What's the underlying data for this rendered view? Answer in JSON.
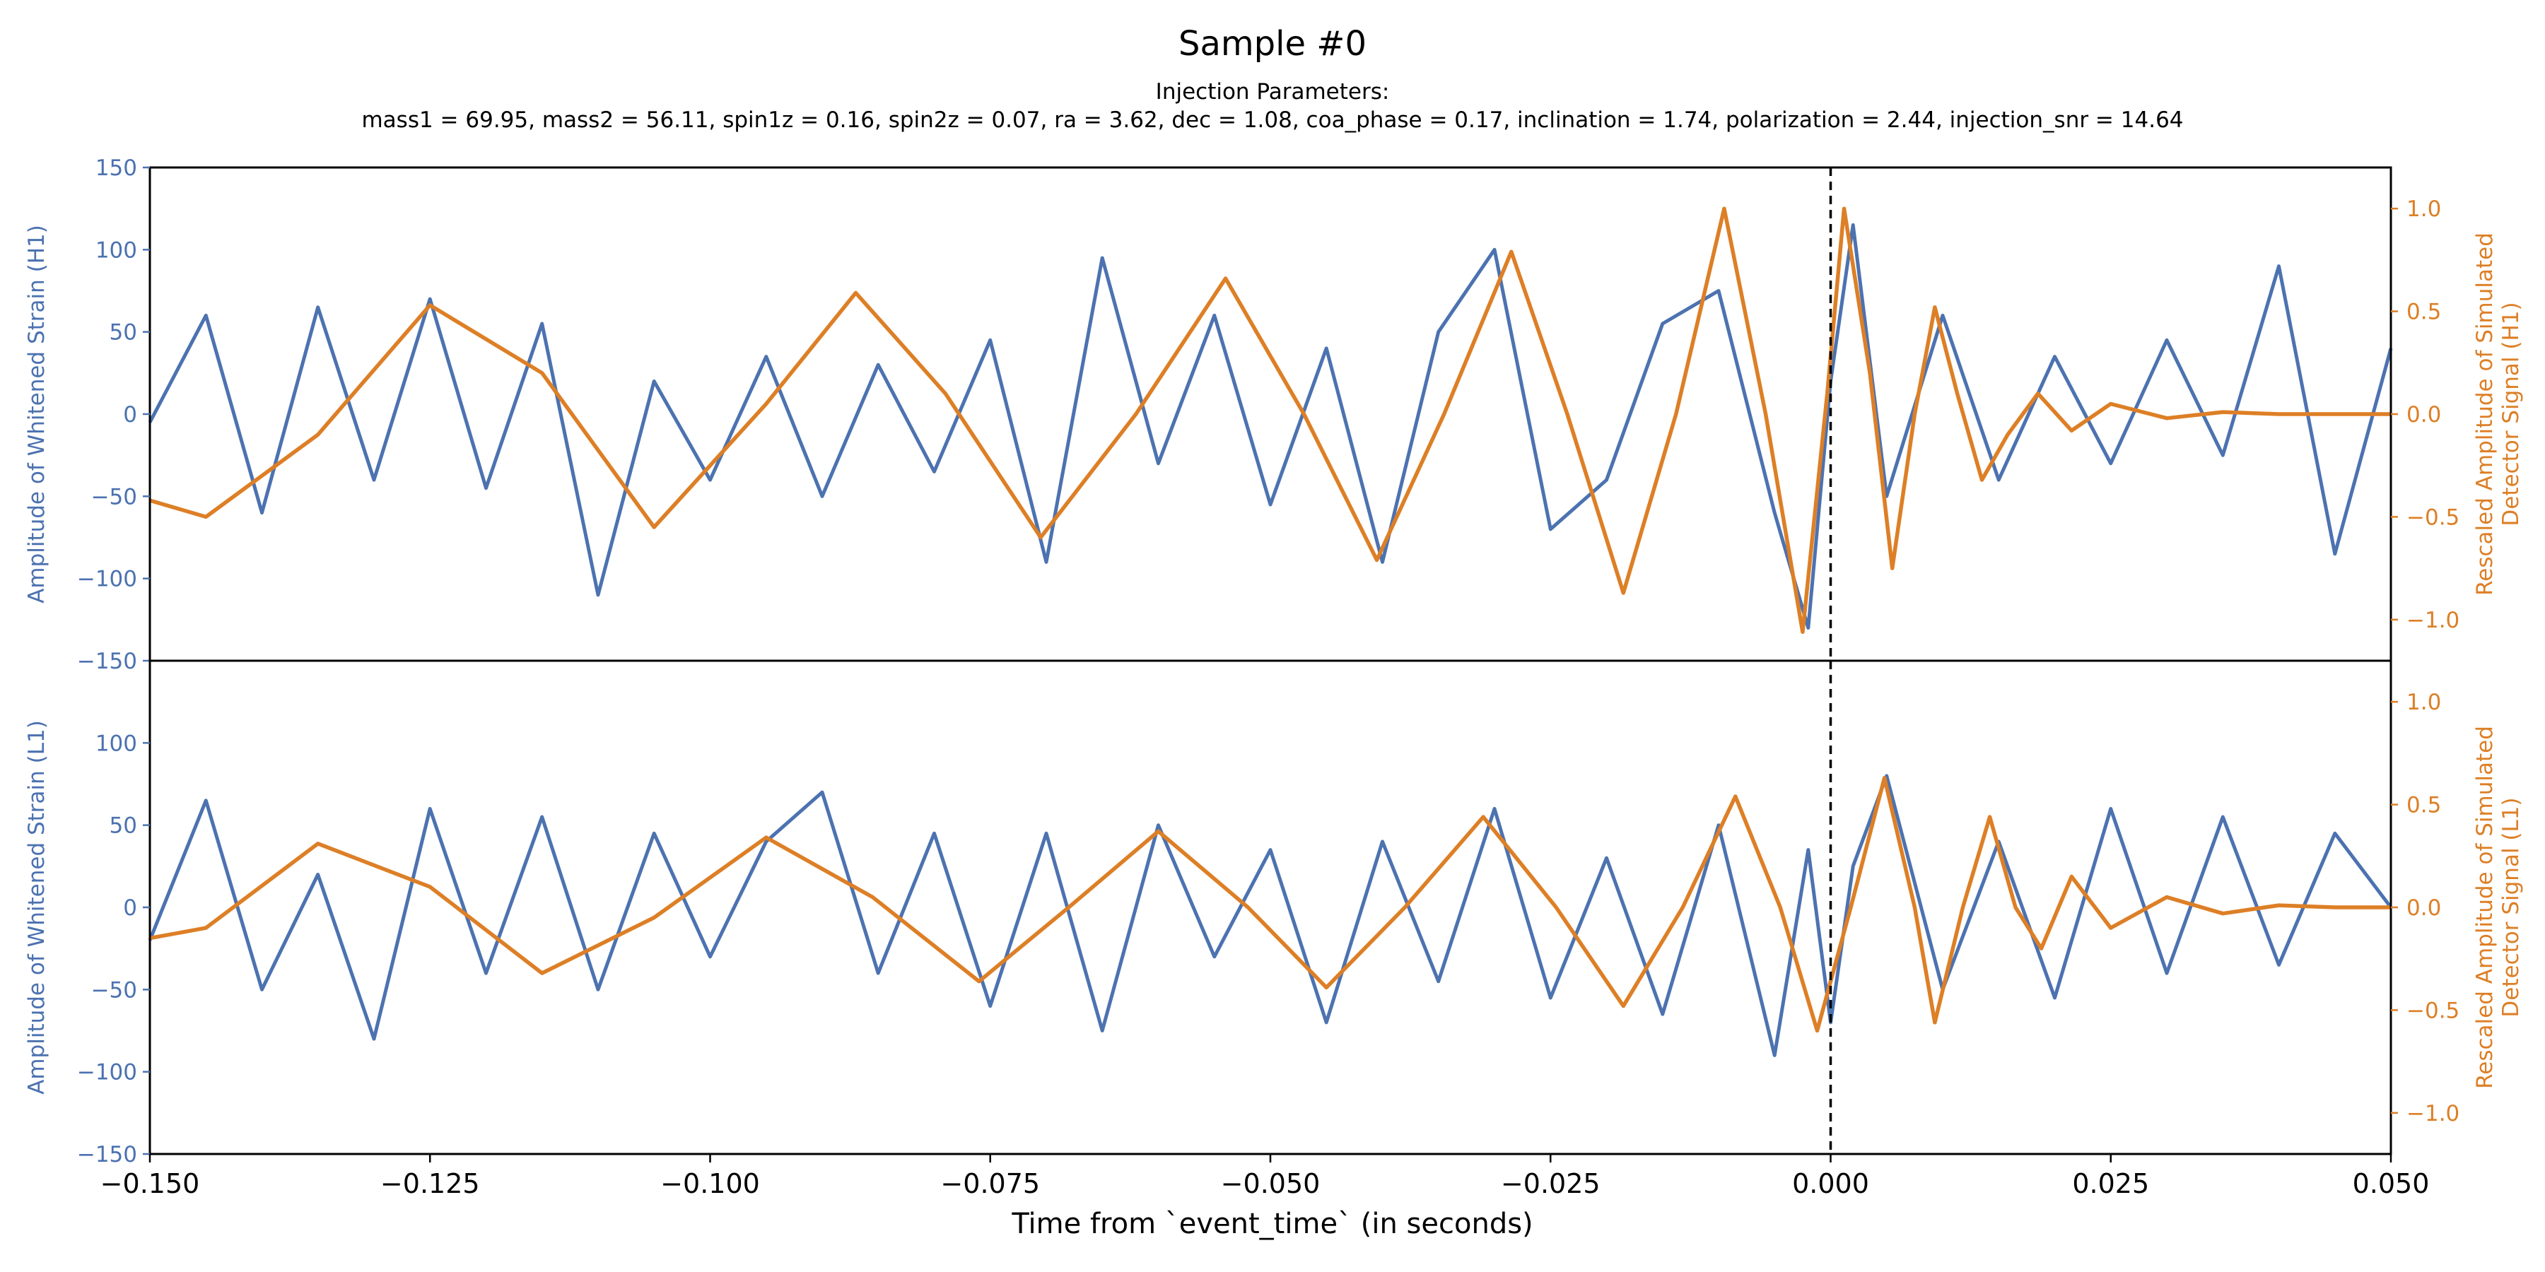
{
  "chart_data": [
    {
      "type": "line",
      "panel": "H1",
      "title": "Sample #0",
      "subtitle_heading": "Injection Parameters:",
      "subtitle_params": "mass1 = 69.95, mass2 = 56.11, spin1z = 0.16, spin2z = 0.07, ra = 3.62, dec = 1.08, coa_phase = 0.17, inclination = 1.74, polarization = 2.44, injection_snr = 14.64",
      "ylabel_left": "Amplitude of Whitened Strain (H1)",
      "ylabel_right_line1": "Rescaled Amplitude of Simulated",
      "ylabel_right_line2": "Detector Signal (H1)",
      "xlim": [
        -0.15,
        0.05
      ],
      "ylim_left": [
        -150,
        150
      ],
      "ylim_right": [
        -1.2,
        1.2
      ],
      "yticks_left": [
        "150",
        "100",
        "50",
        "0",
        "−50",
        "−100",
        "−150"
      ],
      "yticks_right": [
        "1.0",
        "0.5",
        "0.0",
        "−0.5",
        "−1.0"
      ],
      "event_time_marker": 0.0,
      "series": [
        {
          "name": "Whitened strain (H1)",
          "axis": "left",
          "color": "#4c72b0",
          "x": [
            -0.15,
            -0.145,
            -0.14,
            -0.135,
            -0.13,
            -0.125,
            -0.12,
            -0.115,
            -0.11,
            -0.105,
            -0.1,
            -0.095,
            -0.09,
            -0.085,
            -0.08,
            -0.075,
            -0.07,
            -0.065,
            -0.06,
            -0.055,
            -0.05,
            -0.045,
            -0.04,
            -0.035,
            -0.03,
            -0.025,
            -0.02,
            -0.015,
            -0.01,
            -0.005,
            -0.002,
            0.0,
            0.002,
            0.005,
            0.01,
            0.015,
            0.02,
            0.025,
            0.03,
            0.035,
            0.04,
            0.045,
            0.05
          ],
          "values": [
            -5,
            60,
            -60,
            65,
            -40,
            70,
            -45,
            55,
            -110,
            20,
            -40,
            35,
            -50,
            30,
            -35,
            45,
            -90,
            95,
            -30,
            60,
            -55,
            40,
            -90,
            50,
            100,
            -70,
            -40,
            55,
            75,
            -60,
            -130,
            20,
            115,
            -50,
            60,
            -40,
            35,
            -30,
            45,
            -25,
            90,
            -85,
            40
          ]
        },
        {
          "name": "Simulated detector signal (H1)",
          "axis": "right",
          "color": "#dd7f26",
          "x": [
            -0.15,
            -0.145,
            -0.135,
            -0.125,
            -0.115,
            -0.105,
            -0.095,
            -0.087,
            -0.079,
            -0.0705,
            -0.062,
            -0.054,
            -0.047,
            -0.0405,
            -0.0345,
            -0.0285,
            -0.0235,
            -0.0185,
            -0.0138,
            -0.0095,
            -0.0058,
            -0.0025,
            -0.0003,
            0.0012,
            0.0035,
            0.0055,
            0.0075,
            0.0093,
            0.0113,
            0.0135,
            0.0158,
            0.0185,
            0.0215,
            0.025,
            0.03,
            0.035,
            0.04,
            0.045,
            0.05
          ],
          "values": [
            -0.42,
            -0.5,
            -0.1,
            0.53,
            0.2,
            -0.55,
            0.05,
            0.59,
            0.1,
            -0.6,
            0.0,
            0.66,
            0.0,
            -0.71,
            0.0,
            0.79,
            0.0,
            -0.87,
            0.0,
            1.0,
            0.0,
            -1.06,
            0.1,
            1.0,
            0.2,
            -0.75,
            0.0,
            0.52,
            0.1,
            -0.32,
            -0.1,
            0.1,
            -0.08,
            0.05,
            -0.02,
            0.01,
            0.0,
            0.0,
            0.0
          ]
        }
      ]
    },
    {
      "type": "line",
      "panel": "L1",
      "ylabel_left": "Amplitude of Whitened Strain (L1)",
      "ylabel_right_line1": "Rescaled Amplitude of Simulated",
      "ylabel_right_line2": "Detector Signal (L1)",
      "xlabel": "Time from `event_time` (in seconds)",
      "xlim": [
        -0.15,
        0.05
      ],
      "ylim_left": [
        -150,
        150
      ],
      "ylim_right": [
        -1.2,
        1.2
      ],
      "xticks": [
        "−0.150",
        "−0.125",
        "−0.100",
        "−0.075",
        "−0.050",
        "−0.025",
        "0.000",
        "0.025",
        "0.050"
      ],
      "yticks_left": [
        "100",
        "50",
        "0",
        "−50",
        "−100",
        "−150"
      ],
      "yticks_right": [
        "1.0",
        "0.5",
        "0.0",
        "−0.5",
        "−1.0"
      ],
      "event_time_marker": 0.0,
      "series": [
        {
          "name": "Whitened strain (L1)",
          "axis": "left",
          "color": "#4c72b0",
          "x": [
            -0.15,
            -0.145,
            -0.14,
            -0.135,
            -0.13,
            -0.125,
            -0.12,
            -0.115,
            -0.11,
            -0.105,
            -0.1,
            -0.095,
            -0.09,
            -0.085,
            -0.08,
            -0.075,
            -0.07,
            -0.065,
            -0.06,
            -0.055,
            -0.05,
            -0.045,
            -0.04,
            -0.035,
            -0.03,
            -0.025,
            -0.02,
            -0.015,
            -0.01,
            -0.005,
            -0.002,
            0.0,
            0.002,
            0.005,
            0.01,
            0.015,
            0.02,
            0.025,
            0.03,
            0.035,
            0.04,
            0.045,
            0.05
          ],
          "values": [
            -20,
            65,
            -50,
            20,
            -80,
            60,
            -40,
            55,
            -50,
            45,
            -30,
            40,
            70,
            -40,
            45,
            -60,
            45,
            -75,
            50,
            -30,
            35,
            -70,
            40,
            -45,
            60,
            -55,
            30,
            -65,
            50,
            -90,
            35,
            -70,
            25,
            80,
            -50,
            40,
            -55,
            60,
            -40,
            55,
            -35,
            45,
            0
          ]
        },
        {
          "name": "Simulated detector signal (L1)",
          "axis": "right",
          "color": "#dd7f26",
          "x": [
            -0.15,
            -0.145,
            -0.135,
            -0.125,
            -0.115,
            -0.105,
            -0.095,
            -0.0855,
            -0.076,
            -0.068,
            -0.06,
            -0.052,
            -0.045,
            -0.038,
            -0.031,
            -0.0245,
            -0.0185,
            -0.0132,
            -0.0085,
            -0.0045,
            -0.0012,
            0.0018,
            0.0048,
            0.0075,
            0.0093,
            0.0118,
            0.0142,
            0.0165,
            0.0188,
            0.0215,
            0.025,
            0.03,
            0.035,
            0.04,
            0.045,
            0.05
          ],
          "values": [
            -0.15,
            -0.1,
            0.31,
            0.1,
            -0.32,
            -0.05,
            0.34,
            0.05,
            -0.36,
            0.0,
            0.37,
            0.0,
            -0.39,
            0.0,
            0.44,
            0.0,
            -0.48,
            0.0,
            0.54,
            0.0,
            -0.6,
            0.0,
            0.63,
            0.0,
            -0.56,
            0.0,
            0.44,
            0.0,
            -0.2,
            0.15,
            -0.1,
            0.05,
            -0.03,
            0.01,
            0.0,
            0.0
          ]
        }
      ]
    }
  ]
}
